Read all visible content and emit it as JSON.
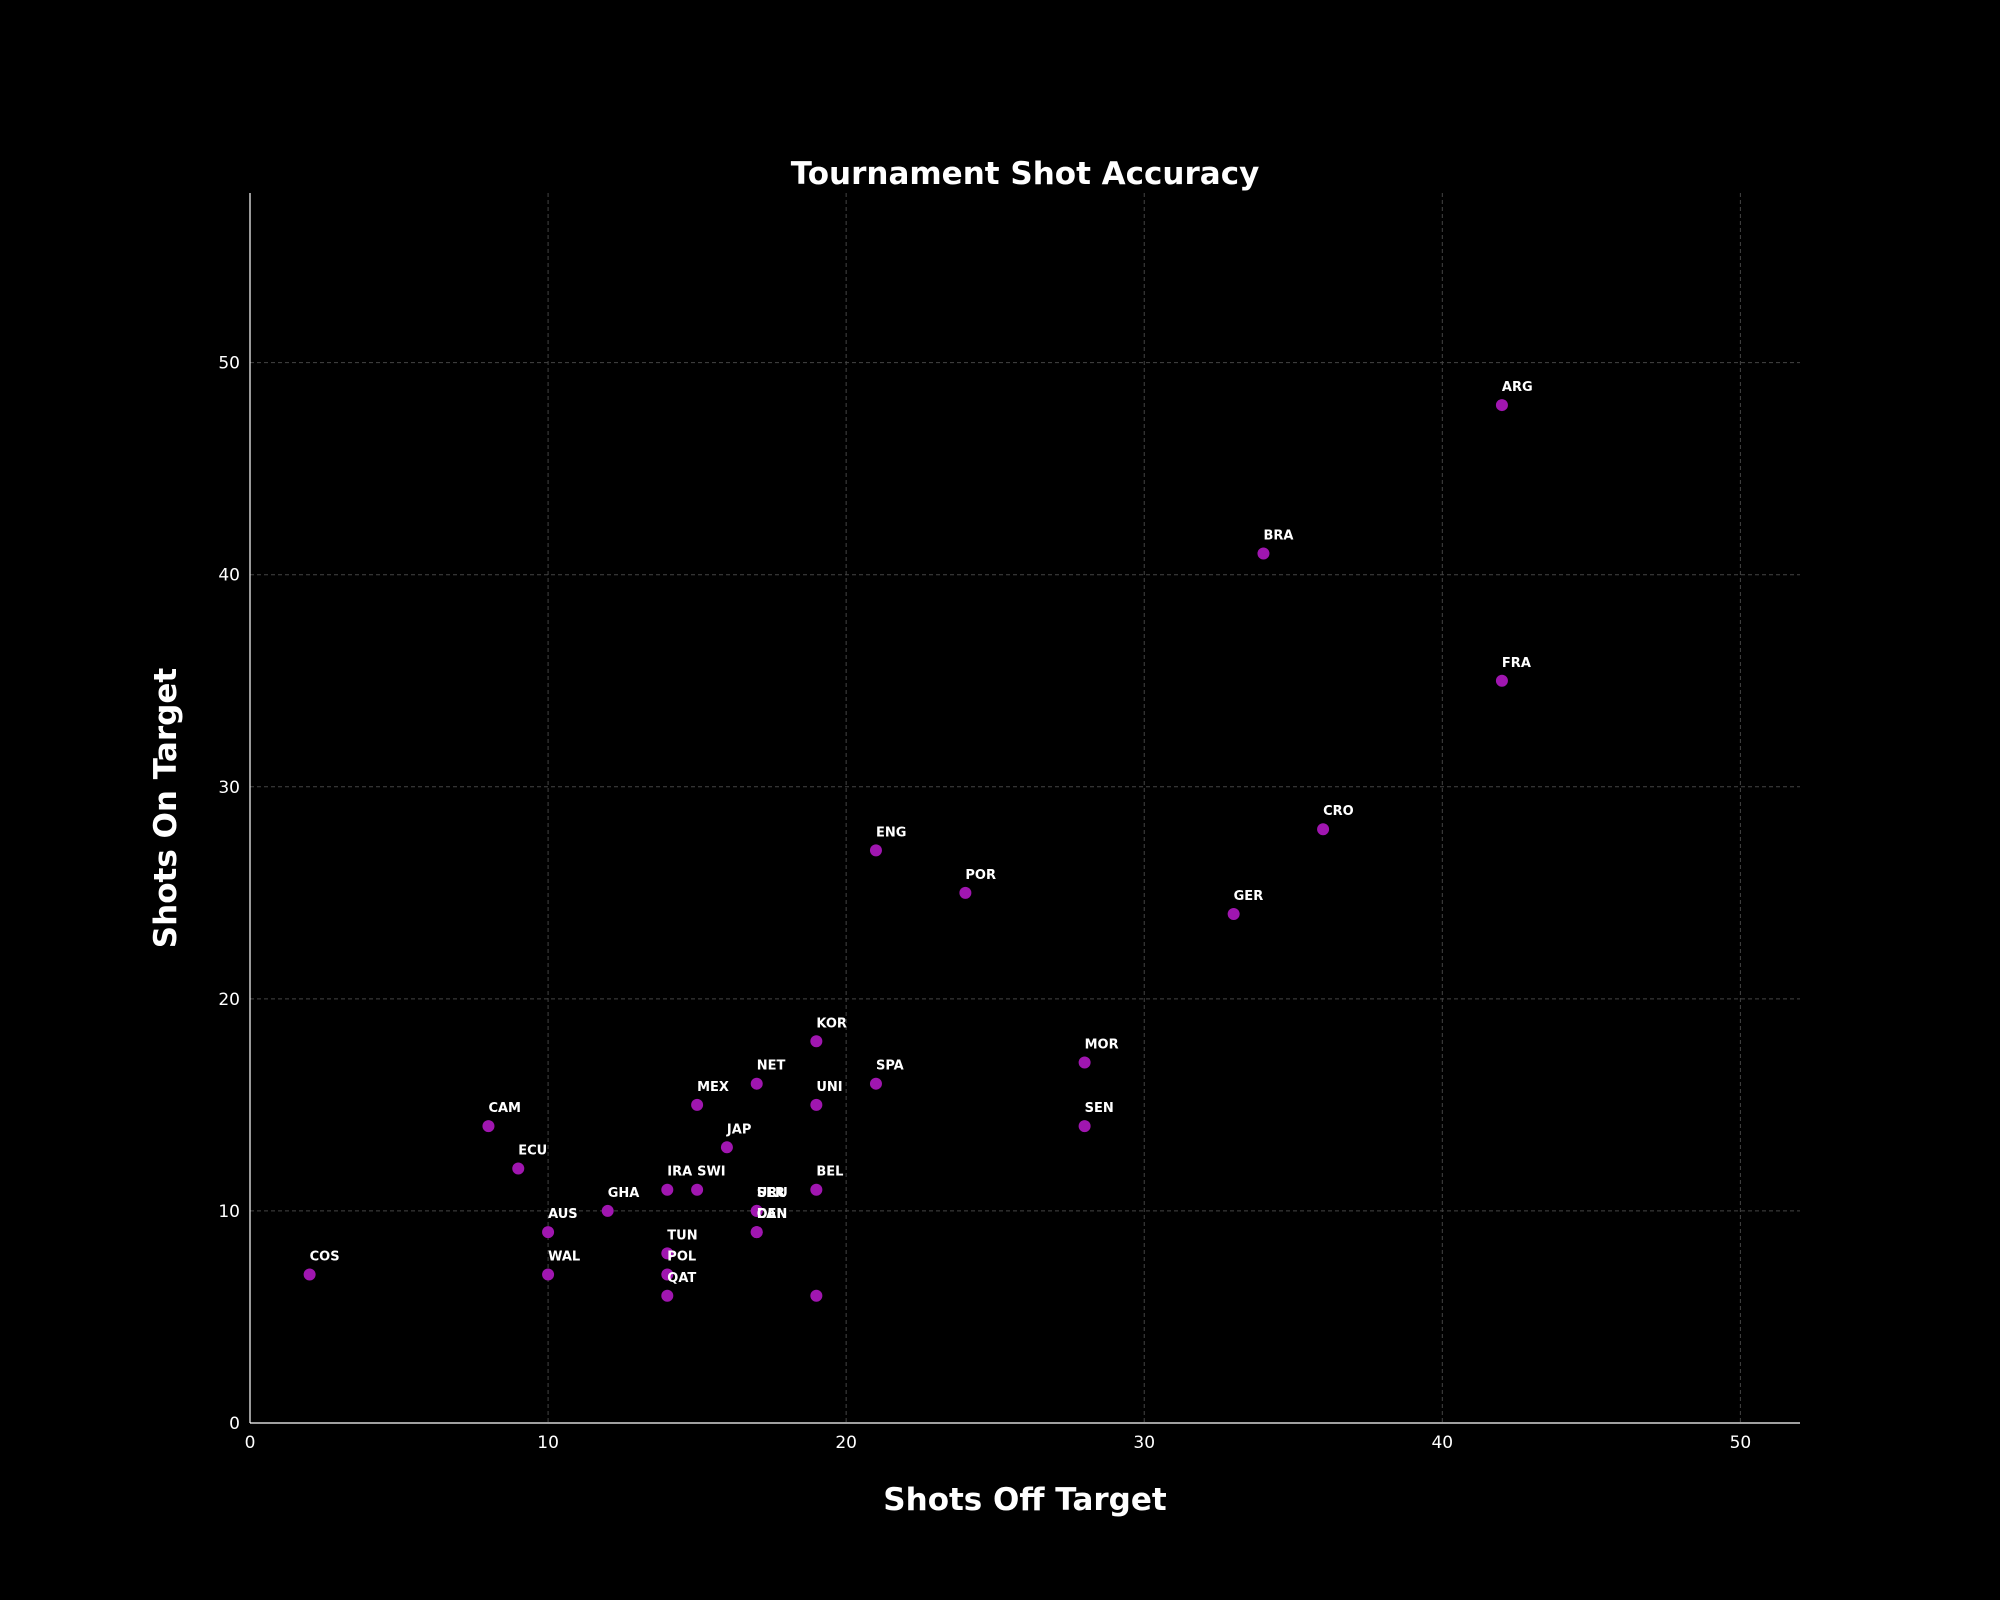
{
  "chart_data": {
    "type": "scatter",
    "title": "Tournament Shot Accuracy",
    "xlabel": "Shots Off Target",
    "ylabel": "Shots On Target",
    "xlim": [
      0,
      52
    ],
    "ylim": [
      0,
      58
    ],
    "xticks": [
      0,
      10,
      20,
      30,
      40,
      50
    ],
    "yticks": [
      0,
      10,
      20,
      30,
      40,
      50
    ],
    "grid": true,
    "marker_color": "#a016b0",
    "points": [
      {
        "label": "ARG",
        "x": 42,
        "y": 48
      },
      {
        "label": "BRA",
        "x": 34,
        "y": 41
      },
      {
        "label": "FRA",
        "x": 42,
        "y": 35
      },
      {
        "label": "CRO",
        "x": 36,
        "y": 28
      },
      {
        "label": "ENG",
        "x": 21,
        "y": 27
      },
      {
        "label": "POR",
        "x": 24,
        "y": 25
      },
      {
        "label": "GER",
        "x": 33,
        "y": 24
      },
      {
        "label": "KOR",
        "x": 19,
        "y": 18
      },
      {
        "label": "MOR",
        "x": 28,
        "y": 17
      },
      {
        "label": "NET",
        "x": 17,
        "y": 16
      },
      {
        "label": "SPA",
        "x": 21,
        "y": 16
      },
      {
        "label": "MEX",
        "x": 15,
        "y": 15
      },
      {
        "label": "UNI",
        "x": 19,
        "y": 15
      },
      {
        "label": "CAM",
        "x": 8,
        "y": 14
      },
      {
        "label": "SEN",
        "x": 28,
        "y": 14
      },
      {
        "label": "JAP",
        "x": 16,
        "y": 13
      },
      {
        "label": "ECU",
        "x": 9,
        "y": 12
      },
      {
        "label": "IRA",
        "x": 14,
        "y": 11
      },
      {
        "label": "SWI",
        "x": 15,
        "y": 11
      },
      {
        "label": "BEL",
        "x": 19,
        "y": 11
      },
      {
        "label": "GHA",
        "x": 12,
        "y": 10
      },
      {
        "label": "SER",
        "x": 17,
        "y": 10
      },
      {
        "label": "URU",
        "x": 17,
        "y": 10
      },
      {
        "label": "AUS",
        "x": 10,
        "y": 9
      },
      {
        "label": "CAN",
        "x": 17,
        "y": 9
      },
      {
        "label": "DEN",
        "x": 17,
        "y": 9
      },
      {
        "label": "TUN",
        "x": 14,
        "y": 8
      },
      {
        "label": "COS",
        "x": 2,
        "y": 7
      },
      {
        "label": "WAL",
        "x": 10,
        "y": 7
      },
      {
        "label": "POL",
        "x": 14,
        "y": 7
      },
      {
        "label": "QAT",
        "x": 14,
        "y": 6
      },
      {
        "label": "",
        "x": 19,
        "y": 6
      }
    ]
  }
}
